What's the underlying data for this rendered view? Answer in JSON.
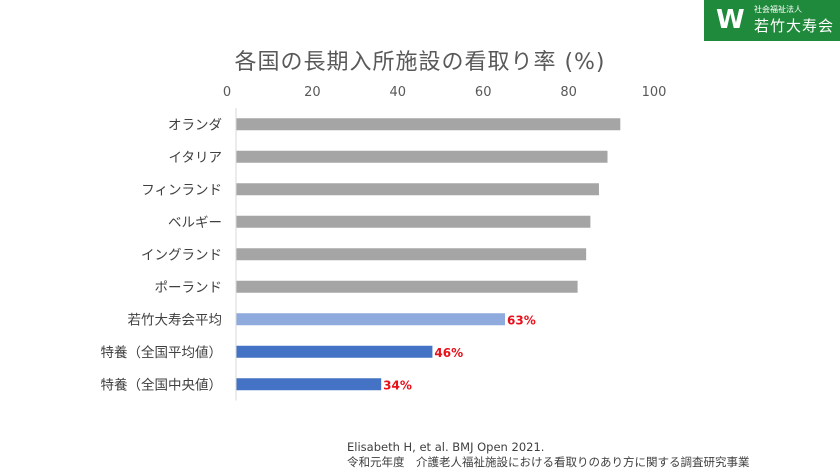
{
  "logo": {
    "mark": "W",
    "subtitle": "社会福祉法人",
    "name": "若竹大寿会",
    "color": "#1f8a3b"
  },
  "chart_data": {
    "type": "bar",
    "orientation": "horizontal",
    "title": "各国の長期入所施設の看取り率 (%)",
    "xlabel": "",
    "ylabel": "",
    "xlim": [
      0,
      100
    ],
    "xticks": [
      0,
      20,
      40,
      60,
      80,
      100
    ],
    "grid": false,
    "categories": [
      "オランダ",
      "イタリア",
      "フィンランド",
      "ベルギー",
      "イングランド",
      "ポーランド",
      "若竹大寿会平均",
      "特養（全国平均値）",
      "特養（全国中央値）"
    ],
    "values": [
      90,
      87,
      85,
      83,
      82,
      80,
      63,
      46,
      34
    ],
    "colors": [
      "#a5a5a5",
      "#a5a5a5",
      "#a5a5a5",
      "#a5a5a5",
      "#a5a5a5",
      "#a5a5a5",
      "#8faadc",
      "#4472c4",
      "#4472c4"
    ],
    "data_labels": [
      "",
      "",
      "",
      "",
      "",
      "",
      "63%",
      "46%",
      "34%"
    ],
    "data_label_color": "#e8101a"
  },
  "source": {
    "line1": "Elisabeth H, et al. BMJ Open 2021.",
    "line2": "令和元年度　介護老人福祉施設における看取りのあり方に関する調査研究事業"
  }
}
